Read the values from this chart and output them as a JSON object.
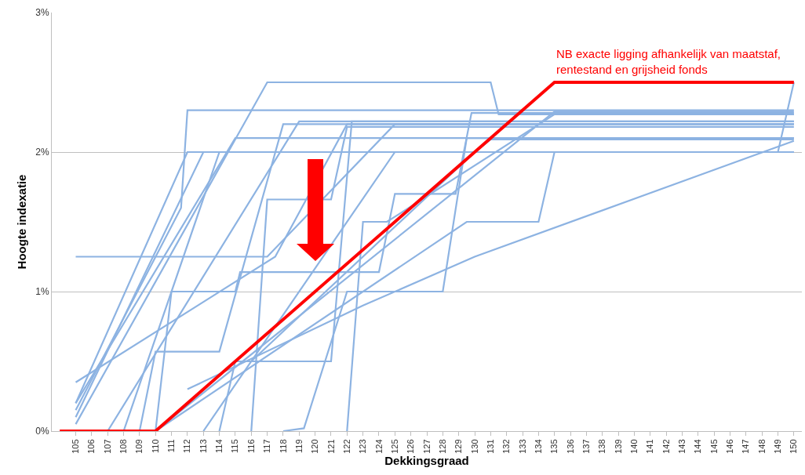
{
  "chart_data": {
    "type": "line",
    "xlabel": "Dekkingsgraad",
    "ylabel": "Hoogte indexatie",
    "xlim": [
      103.5,
      150.5
    ],
    "xticks": [
      105,
      106,
      107,
      108,
      109,
      110,
      111,
      112,
      113,
      114,
      115,
      116,
      117,
      118,
      119,
      120,
      121,
      122,
      123,
      124,
      125,
      126,
      127,
      128,
      129,
      130,
      131,
      132,
      133,
      134,
      135,
      136,
      137,
      138,
      139,
      140,
      141,
      142,
      143,
      144,
      145,
      146,
      147,
      148,
      149,
      150
    ],
    "ylim": [
      0,
      3
    ],
    "yticks": [
      {
        "value": 0,
        "label": "0%"
      },
      {
        "value": 1,
        "label": "1%"
      },
      {
        "value": 2,
        "label": "2%"
      },
      {
        "value": 3,
        "label": "3%"
      }
    ],
    "grid": "y",
    "marker": "none",
    "line_style": "solid",
    "annotations": [
      {
        "text": "NB exacte ligging afhankelijk van maatstaf,\nrentestand en grijsheid fonds",
        "x": 135,
        "y": 2.5
      }
    ],
    "series": [
      {
        "color": "#8db3e2",
        "x": [
          105,
          111.6,
          112,
          150
        ],
        "values": [
          0.15,
          1.6,
          2.3,
          2.3
        ]
      },
      {
        "color": "#8db3e2",
        "x": [
          105,
          113,
          150
        ],
        "values": [
          0.1,
          2.0,
          2.0
        ]
      },
      {
        "color": "#8db3e2",
        "x": [
          105,
          117,
          131,
          131.5,
          150
        ],
        "values": [
          0.05,
          2.5,
          2.5,
          2.27,
          2.27
        ]
      },
      {
        "color": "#8db3e2",
        "x": [
          105,
          115,
          150
        ],
        "values": [
          0.2,
          2.1,
          2.1
        ]
      },
      {
        "color": "#8db3e2",
        "x": [
          105,
          117.5,
          122,
          150
        ],
        "values": [
          0.35,
          1.25,
          2.2,
          2.2
        ]
      },
      {
        "color": "#8db3e2",
        "x": [
          105,
          117,
          125,
          150
        ],
        "values": [
          1.25,
          1.25,
          2.2,
          2.2
        ]
      },
      {
        "color": "#8db3e2",
        "x": [
          107,
          119,
          150
        ],
        "values": [
          0,
          2.22,
          2.22
        ]
      },
      {
        "color": "#8db3e2",
        "x": [
          108,
          114,
          150
        ],
        "values": [
          0,
          2.0,
          2.0
        ]
      },
      {
        "color": "#8db3e2",
        "x": [
          109,
          110,
          114,
          118,
          150
        ],
        "values": [
          0,
          0.57,
          0.57,
          2.2,
          2.2
        ]
      },
      {
        "color": "#8db3e2",
        "x": [
          110,
          111,
          115,
          115.3,
          124,
          125,
          128.8,
          129.8,
          150
        ],
        "values": [
          0,
          1.0,
          1.0,
          1.14,
          1.14,
          1.7,
          1.7,
          2.28,
          2.28
        ]
      },
      {
        "color": "#8db3e2",
        "x": [
          113,
          125,
          150
        ],
        "values": [
          0,
          2.0,
          2.0
        ]
      },
      {
        "color": "#8db3e2",
        "x": [
          114,
          115,
          121,
          122.3,
          150
        ],
        "values": [
          0,
          0.5,
          0.5,
          2.22,
          2.22
        ]
      },
      {
        "color": "#8db3e2",
        "x": [
          116,
          117,
          121,
          122,
          150
        ],
        "values": [
          0,
          1.66,
          1.66,
          2.18,
          2.18
        ]
      },
      {
        "color": "#8db3e2",
        "x": [
          118,
          119.3,
          122,
          128,
          129.5,
          150
        ],
        "values": [
          0,
          0.02,
          1.0,
          1.0,
          2.1,
          2.1
        ]
      },
      {
        "color": "#8db3e2",
        "x": [
          122,
          123,
          124.5,
          135,
          150
        ],
        "values": [
          0,
          1.5,
          1.5,
          2.27,
          2.27
        ]
      },
      {
        "color": "#8db3e2",
        "x": [
          112,
          123,
          130,
          150
        ],
        "values": [
          0.3,
          0.9,
          1.25,
          2.08
        ]
      },
      {
        "color": "#8db3e2",
        "x": [
          105,
          112,
          149,
          150
        ],
        "values": [
          0.2,
          2.0,
          2.0,
          2.5
        ]
      },
      {
        "color": "#8db3e2",
        "x": [
          116,
          130,
          131,
          150
        ],
        "values": [
          0.5,
          2.0,
          2.09,
          2.09
        ]
      },
      {
        "color": "#8db3e2",
        "x": [
          110,
          129.5,
          134,
          135,
          150
        ],
        "values": [
          0,
          1.5,
          1.5,
          2.0,
          2.0
        ]
      },
      {
        "color": "#8db3e2",
        "x": [
          110,
          135,
          150
        ],
        "values": [
          0,
          2.29,
          2.29
        ]
      },
      {
        "color": "#ff0000",
        "x": [
          104,
          110,
          135,
          150
        ],
        "values": [
          0,
          0,
          2.5,
          2.5
        ]
      }
    ]
  }
}
